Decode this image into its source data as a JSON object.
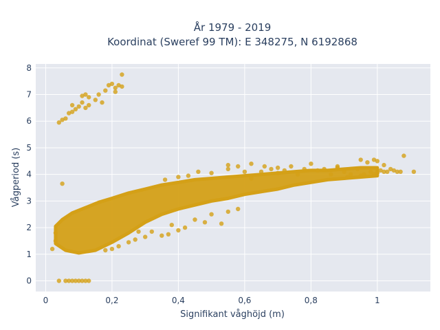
{
  "chart_data": {
    "type": "scatter",
    "title": [
      "År 1979 - 2019",
      "Koordinat (Sweref 99 TM): E 348275, N 6192868"
    ],
    "xlabel": "Signifikant våghöjd (m)",
    "ylabel": "Vågperiod (s)",
    "xlim": [
      -0.03,
      1.16
    ],
    "ylim": [
      -0.4,
      8.15
    ],
    "x_ticks": [
      0,
      0.2,
      0.4,
      0.6,
      0.8,
      1
    ],
    "x_tick_labels": [
      "0",
      "0,2",
      "0,4",
      "0,6",
      "0,8",
      "1"
    ],
    "y_ticks": [
      0,
      1,
      2,
      3,
      4,
      5,
      6,
      7,
      8
    ],
    "y_tick_labels": [
      "0",
      "1",
      "2",
      "3",
      "4",
      "5",
      "6",
      "7",
      "8"
    ],
    "grid": true,
    "marker_color": "#d4a017",
    "plot_background": "#e5e8ef",
    "cloud": {
      "upper": [
        [
          0.03,
          2.05
        ],
        [
          0.05,
          2.3
        ],
        [
          0.08,
          2.55
        ],
        [
          0.12,
          2.75
        ],
        [
          0.16,
          2.95
        ],
        [
          0.2,
          3.1
        ],
        [
          0.25,
          3.3
        ],
        [
          0.3,
          3.45
        ],
        [
          0.35,
          3.6
        ],
        [
          0.4,
          3.7
        ],
        [
          0.45,
          3.8
        ],
        [
          0.5,
          3.85
        ],
        [
          0.55,
          3.9
        ],
        [
          0.6,
          3.95
        ],
        [
          0.65,
          4.0
        ],
        [
          0.7,
          4.05
        ],
        [
          0.75,
          4.1
        ],
        [
          0.8,
          4.15
        ],
        [
          0.85,
          4.15
        ],
        [
          0.9,
          4.2
        ],
        [
          0.95,
          4.25
        ],
        [
          1.0,
          4.25
        ]
      ],
      "lower": [
        [
          1.0,
          3.95
        ],
        [
          0.95,
          3.9
        ],
        [
          0.9,
          3.85
        ],
        [
          0.85,
          3.8
        ],
        [
          0.8,
          3.7
        ],
        [
          0.75,
          3.6
        ],
        [
          0.7,
          3.45
        ],
        [
          0.65,
          3.35
        ],
        [
          0.6,
          3.25
        ],
        [
          0.55,
          3.1
        ],
        [
          0.5,
          3.0
        ],
        [
          0.45,
          2.85
        ],
        [
          0.4,
          2.7
        ],
        [
          0.35,
          2.5
        ],
        [
          0.3,
          2.2
        ],
        [
          0.25,
          1.8
        ],
        [
          0.2,
          1.45
        ],
        [
          0.15,
          1.15
        ],
        [
          0.1,
          1.05
        ],
        [
          0.06,
          1.15
        ],
        [
          0.03,
          1.4
        ]
      ]
    },
    "points": [
      [
        0.04,
        5.95
      ],
      [
        0.05,
        6.05
      ],
      [
        0.06,
        6.1
      ],
      [
        0.07,
        6.3
      ],
      [
        0.08,
        6.35
      ],
      [
        0.08,
        6.6
      ],
      [
        0.09,
        6.45
      ],
      [
        0.1,
        6.55
      ],
      [
        0.11,
        6.7
      ],
      [
        0.11,
        6.95
      ],
      [
        0.12,
        7.0
      ],
      [
        0.13,
        6.9
      ],
      [
        0.12,
        6.5
      ],
      [
        0.13,
        6.6
      ],
      [
        0.15,
        6.8
      ],
      [
        0.17,
        6.7
      ],
      [
        0.18,
        7.15
      ],
      [
        0.19,
        7.35
      ],
      [
        0.2,
        7.4
      ],
      [
        0.21,
        7.25
      ],
      [
        0.22,
        7.35
      ],
      [
        0.23,
        7.3
      ],
      [
        0.23,
        7.75
      ],
      [
        0.21,
        7.1
      ],
      [
        0.16,
        7.0
      ],
      [
        0.05,
        3.65
      ],
      [
        0.04,
        0
      ],
      [
        0.06,
        0
      ],
      [
        0.07,
        0
      ],
      [
        0.08,
        0
      ],
      [
        0.09,
        0
      ],
      [
        0.1,
        0
      ],
      [
        0.11,
        0
      ],
      [
        0.12,
        0
      ],
      [
        0.13,
        0
      ],
      [
        0.02,
        1.2
      ],
      [
        0.03,
        1.5
      ],
      [
        0.03,
        1.8
      ],
      [
        0.6,
        4.1
      ],
      [
        0.62,
        3.85
      ],
      [
        0.65,
        4.1
      ],
      [
        0.68,
        4.2
      ],
      [
        0.7,
        4.05
      ],
      [
        0.72,
        4.15
      ],
      [
        0.74,
        4.3
      ],
      [
        0.76,
        4.0
      ],
      [
        0.78,
        4.2
      ],
      [
        0.8,
        4.4
      ],
      [
        0.82,
        4.15
      ],
      [
        0.84,
        4.2
      ],
      [
        0.86,
        4.0
      ],
      [
        0.88,
        4.3
      ],
      [
        0.9,
        4.1
      ],
      [
        0.92,
        4.0
      ],
      [
        0.94,
        4.2
      ],
      [
        0.95,
        3.95
      ],
      [
        0.96,
        4.0
      ],
      [
        0.98,
        4.1
      ],
      [
        0.99,
        4.0
      ],
      [
        1.0,
        4.05
      ],
      [
        1.01,
        4.15
      ],
      [
        1.02,
        4.1
      ],
      [
        1.03,
        4.1
      ],
      [
        1.05,
        4.15
      ],
      [
        1.06,
        4.1
      ],
      [
        1.07,
        4.1
      ],
      [
        1.08,
        4.7
      ],
      [
        1.11,
        4.1
      ],
      [
        0.97,
        4.45
      ],
      [
        0.99,
        4.55
      ],
      [
        1.0,
        4.5
      ],
      [
        0.95,
        4.55
      ],
      [
        1.02,
        4.35
      ],
      [
        1.04,
        4.2
      ],
      [
        0.88,
        4.25
      ],
      [
        0.91,
        3.9
      ],
      [
        0.32,
        1.85
      ],
      [
        0.35,
        1.7
      ],
      [
        0.37,
        1.75
      ],
      [
        0.38,
        2.1
      ],
      [
        0.4,
        1.9
      ],
      [
        0.42,
        2.0
      ],
      [
        0.45,
        2.3
      ],
      [
        0.48,
        2.2
      ],
      [
        0.5,
        2.5
      ],
      [
        0.53,
        2.15
      ],
      [
        0.55,
        2.6
      ],
      [
        0.58,
        2.7
      ],
      [
        0.3,
        1.65
      ],
      [
        0.28,
        1.85
      ],
      [
        0.43,
        3.95
      ],
      [
        0.46,
        4.1
      ],
      [
        0.5,
        4.05
      ],
      [
        0.55,
        4.2
      ],
      [
        0.58,
        4.3
      ],
      [
        0.62,
        4.4
      ],
      [
        0.66,
        4.3
      ],
      [
        0.7,
        4.25
      ],
      [
        0.55,
        4.35
      ],
      [
        0.4,
        3.9
      ],
      [
        0.36,
        3.8
      ],
      [
        0.2,
        1.2
      ],
      [
        0.22,
        1.3
      ],
      [
        0.25,
        1.45
      ],
      [
        0.18,
        1.15
      ],
      [
        0.27,
        1.55
      ]
    ]
  }
}
